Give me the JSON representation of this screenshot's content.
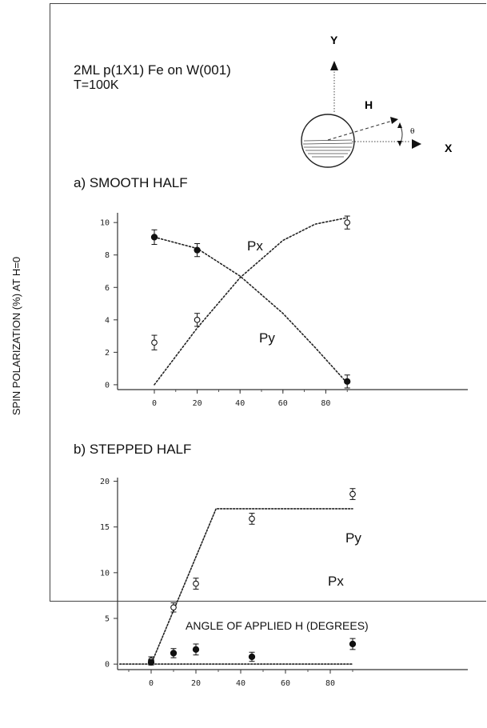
{
  "header": {
    "sample": "2ML p(1X1) Fe on W(001)",
    "temperature": "T=100K"
  },
  "inset": {
    "y_label": "Y",
    "x_label": "X",
    "h_label": "H",
    "theta_label": "θ"
  },
  "y_axis_label": "SPIN POLARIZATION (%) AT H=0",
  "x_axis_label": "ANGLE OF APPLIED H (DEGREES)",
  "colors": {
    "ink": "#111111",
    "axis": "#333333"
  },
  "chart_data": [
    {
      "type": "scatter",
      "title": "a) SMOOTH HALF",
      "xlim": [
        -8,
        93
      ],
      "ylim": [
        -0.3,
        10.6
      ],
      "x_ticks": [
        0,
        20,
        40,
        60,
        80
      ],
      "y_ticks": [
        0,
        2,
        4,
        6,
        8,
        10
      ],
      "series": [
        {
          "name": "Px",
          "marker": "filled-circle",
          "points": [
            {
              "x": 0,
              "y": 9.1,
              "err": 0.45
            },
            {
              "x": 20,
              "y": 8.3,
              "err": 0.4
            },
            {
              "x": 90,
              "y": 0.2,
              "err": 0.4
            }
          ],
          "fit": [
            [
              0,
              9.1
            ],
            [
              20,
              8.4
            ],
            [
              40,
              6.7
            ],
            [
              60,
              4.4
            ],
            [
              75,
              2.3
            ],
            [
              90,
              0.1
            ]
          ]
        },
        {
          "name": "Py",
          "marker": "open-circle",
          "points": [
            {
              "x": 0,
              "y": 2.6,
              "err": 0.45
            },
            {
              "x": 20,
              "y": 4.0,
              "err": 0.4
            },
            {
              "x": 90,
              "y": 10.0,
              "err": 0.4
            }
          ],
          "fit": [
            [
              0,
              0.0
            ],
            [
              20,
              3.5
            ],
            [
              40,
              6.6
            ],
            [
              60,
              8.9
            ],
            [
              75,
              9.9
            ],
            [
              90,
              10.3
            ]
          ]
        }
      ]
    },
    {
      "type": "scatter",
      "title": "b) STEPPED HALF",
      "xlim": [
        -14,
        93
      ],
      "ylim": [
        -0.6,
        20.4
      ],
      "x_ticks": [
        0,
        20,
        40,
        60,
        80
      ],
      "y_ticks": [
        0,
        5,
        10,
        15,
        20
      ],
      "series": [
        {
          "name": "Py",
          "marker": "open-circle",
          "points": [
            {
              "x": 0,
              "y": 0.4,
              "err": 0.4
            },
            {
              "x": 10,
              "y": 6.2,
              "err": 0.5
            },
            {
              "x": 20,
              "y": 8.8,
              "err": 0.6
            },
            {
              "x": 45,
              "y": 15.9,
              "err": 0.6
            },
            {
              "x": 90,
              "y": 18.6,
              "err": 0.6
            }
          ],
          "fit": [
            [
              0,
              0.0
            ],
            [
              29,
              17.0
            ],
            [
              90,
              17.0
            ]
          ]
        },
        {
          "name": "Px",
          "marker": "filled-circle",
          "points": [
            {
              "x": 0,
              "y": 0.2,
              "err": 0.3
            },
            {
              "x": 10,
              "y": 1.2,
              "err": 0.5
            },
            {
              "x": 20,
              "y": 1.6,
              "err": 0.6
            },
            {
              "x": 45,
              "y": 0.8,
              "err": 0.5
            },
            {
              "x": 90,
              "y": 2.2,
              "err": 0.6
            }
          ],
          "fit": [
            [
              -14,
              0.0
            ],
            [
              90,
              0.0
            ]
          ]
        }
      ]
    }
  ]
}
